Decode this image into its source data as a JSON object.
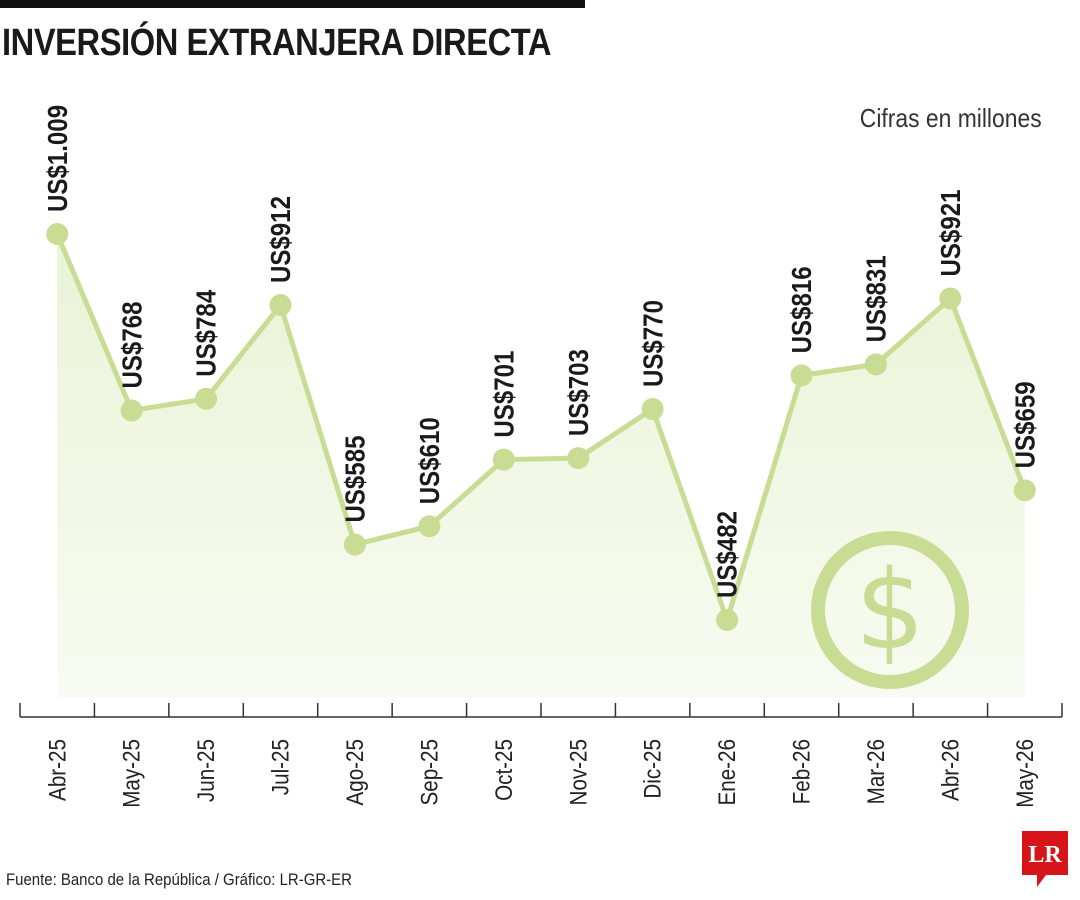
{
  "title": "INVERSIÓN EXTRANJERA DIRECTA",
  "units_note": "Cifras en millones",
  "source": "Fuente: Banco de la República / Gráfico: LR-GR-ER",
  "logo_text": "LR",
  "colors": {
    "line": "#c8dc94",
    "area": "#f3f8e8",
    "text": "#1a1a1a",
    "logo": "#d7141a"
  },
  "icons": {
    "dollar": "dollar-circle-icon"
  },
  "chart_data": {
    "type": "area",
    "categories": [
      "Abr-25",
      "May-25",
      "Jun-25",
      "Jul-25",
      "Ago-25",
      "Sep-25",
      "Oct-25",
      "Nov-25",
      "Dic-25",
      "Ene-26",
      "Feb-26",
      "Mar-26",
      "Abr-26",
      "May-26"
    ],
    "values": [
      1009,
      768,
      784,
      912,
      585,
      610,
      701,
      703,
      770,
      482,
      816,
      831,
      921,
      659
    ],
    "labels": [
      "US$1.009",
      "US$768",
      "US$784",
      "US$912",
      "US$585",
      "US$610",
      "US$701",
      "US$703",
      "US$770",
      "US$482",
      "US$816",
      "US$831",
      "US$921",
      "US$659"
    ],
    "xlabel": "",
    "ylabel": "",
    "grid": false
  }
}
